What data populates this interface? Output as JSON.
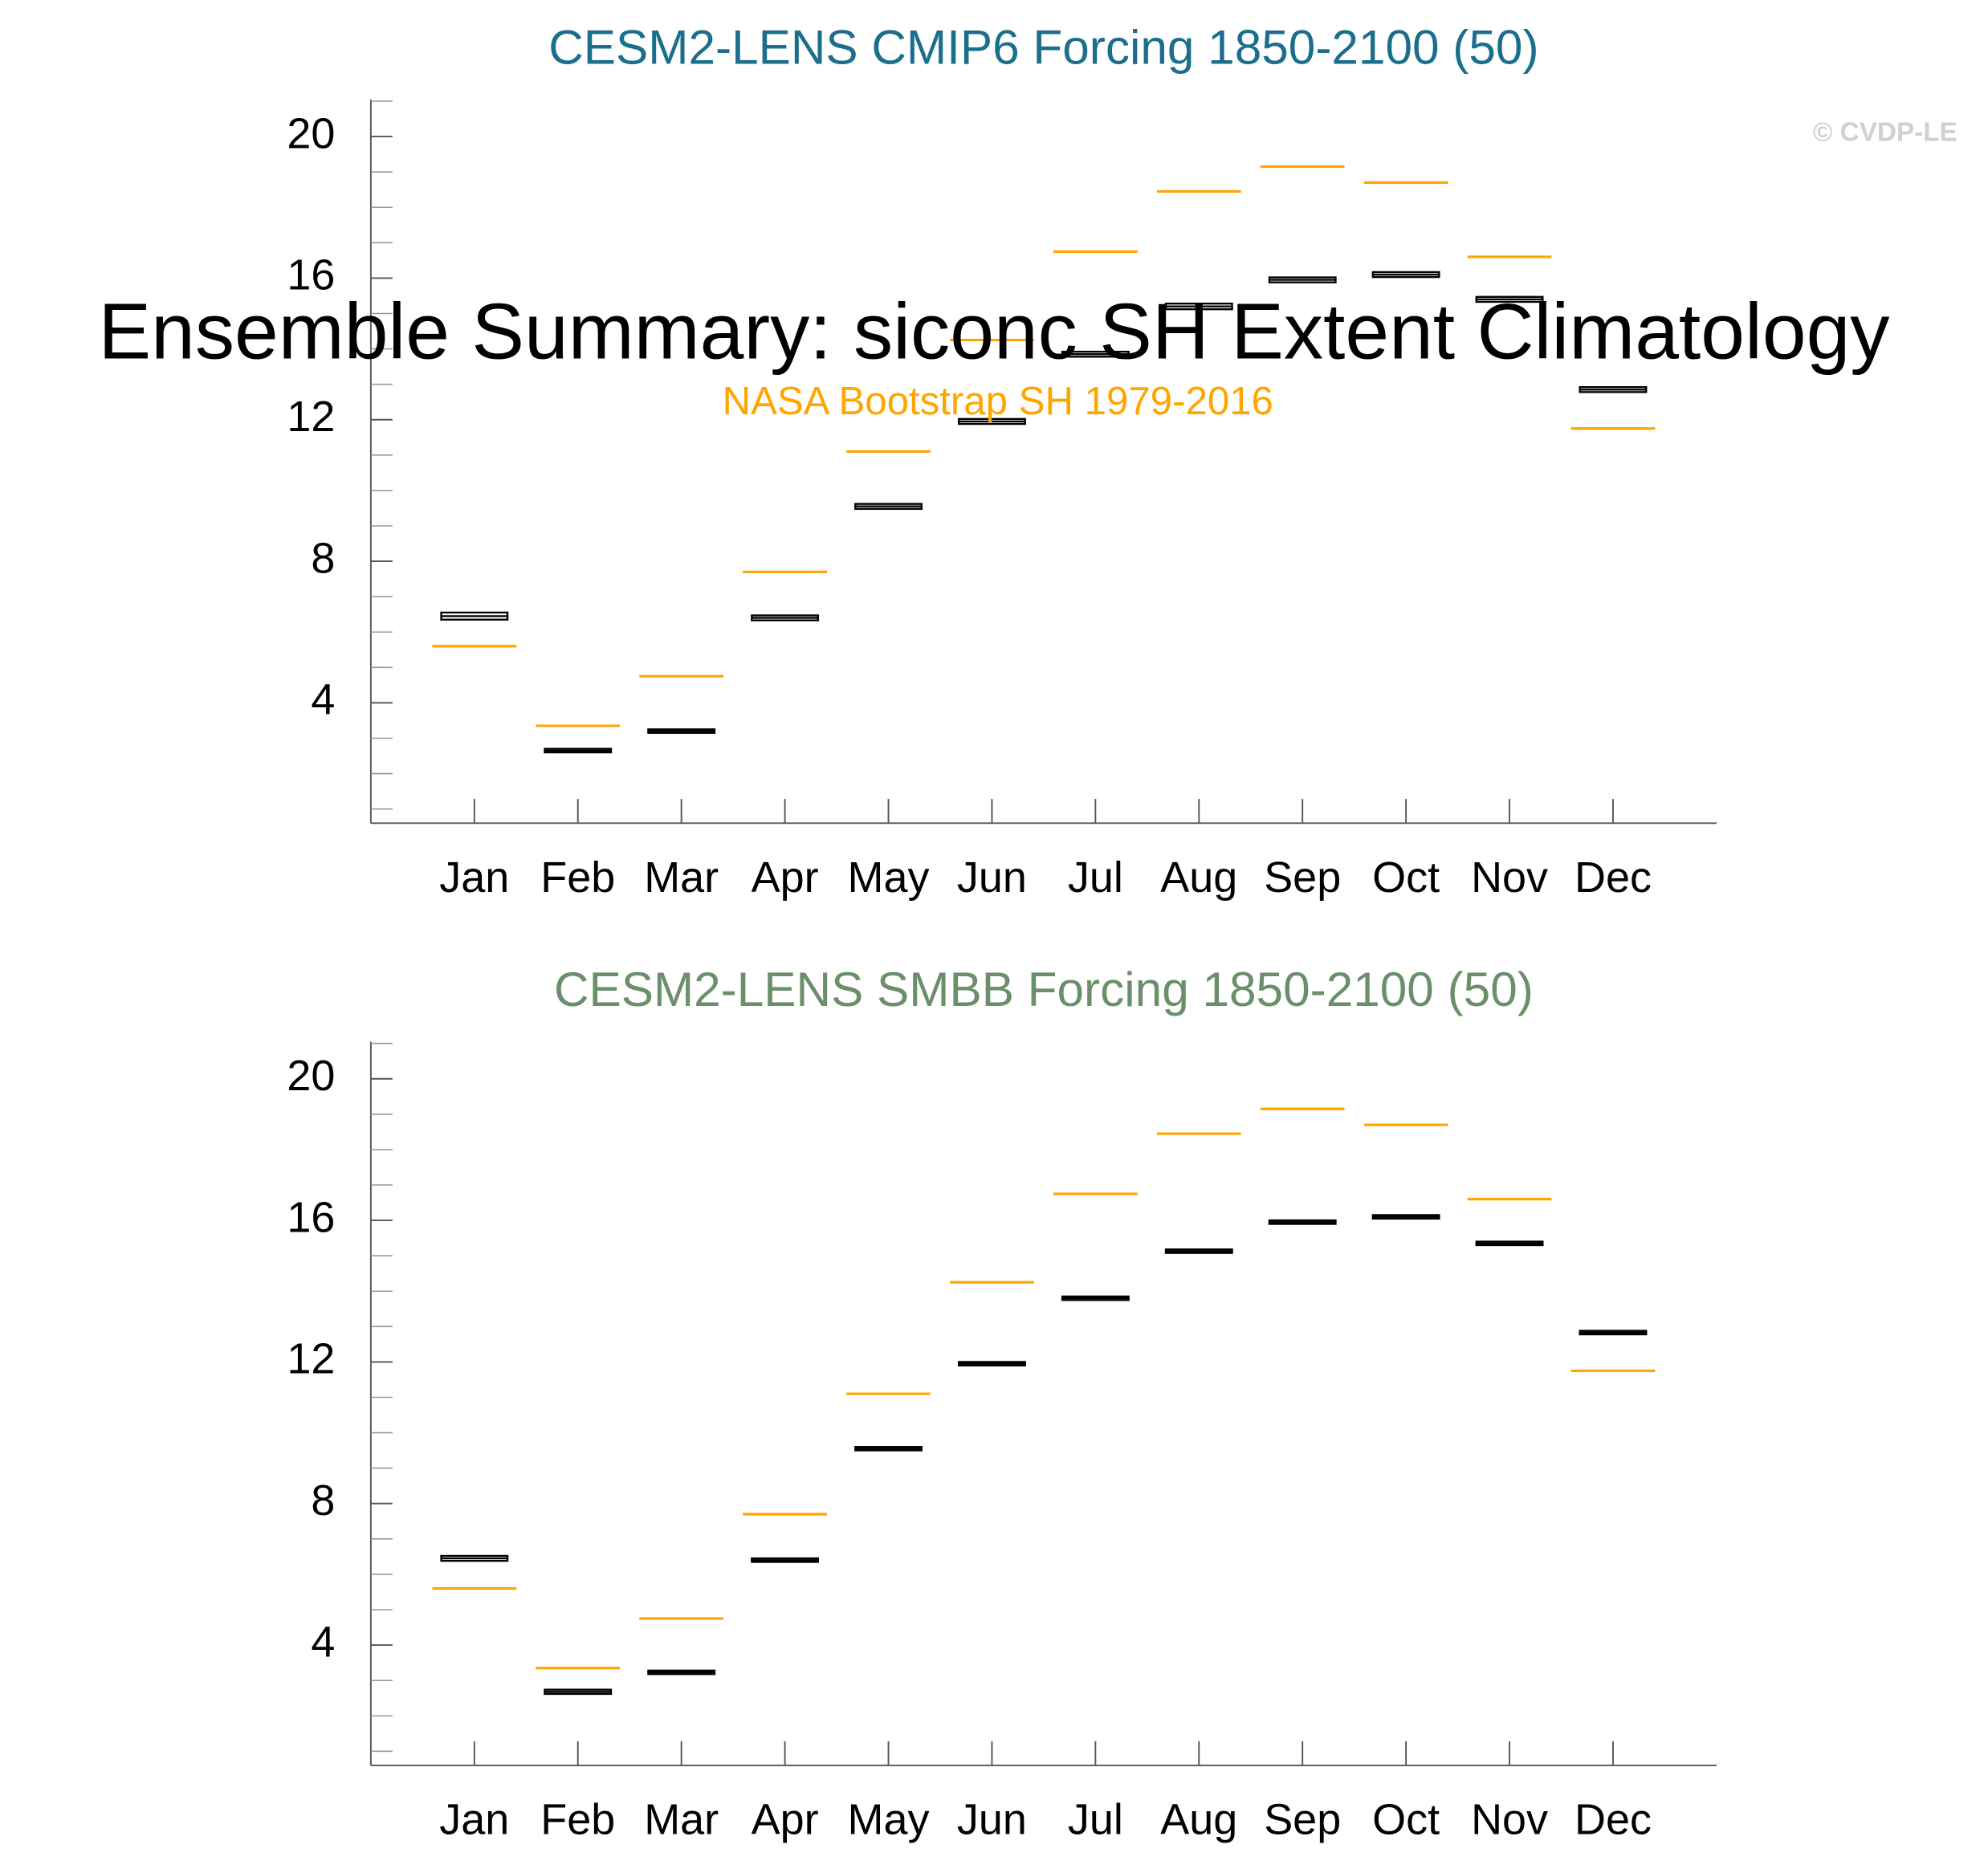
{
  "title": "Ensemble Summary: siconc SH Extent Climatology",
  "subtitle": "NASA Bootstrap SH 1979-2016",
  "watermark": "© CVDP-LE",
  "chart_data": [
    {
      "type": "box",
      "title": "CESM2-LENS CMIP6 Forcing 1850-2100 (50)",
      "title_color": "#1b6e8c",
      "categories": [
        "Jan",
        "Feb",
        "Mar",
        "Apr",
        "May",
        "Jun",
        "Jul",
        "Aug",
        "Sep",
        "Oct",
        "Nov",
        "Dec"
      ],
      "boxes": {
        "color": "#000000",
        "q1": [
          6.35,
          2.6,
          3.15,
          6.33,
          9.48,
          11.88,
          13.78,
          15.12,
          15.88,
          16.03,
          15.33,
          12.78
        ],
        "median": [
          6.45,
          2.65,
          3.2,
          6.4,
          9.55,
          11.95,
          13.85,
          15.2,
          15.95,
          16.1,
          15.4,
          12.85
        ],
        "q3": [
          6.55,
          2.7,
          3.25,
          6.47,
          9.62,
          12.02,
          13.92,
          15.28,
          16.02,
          16.17,
          15.47,
          12.92
        ]
      },
      "observation": {
        "color": "#ffa500",
        "values": [
          5.6,
          3.35,
          4.75,
          7.7,
          11.1,
          14.25,
          16.75,
          18.45,
          19.15,
          18.7,
          16.6,
          11.75
        ]
      },
      "ylim": [
        0.6,
        21.05
      ],
      "yticks": [
        4,
        8,
        12,
        16,
        20
      ],
      "yminor": [
        1,
        2,
        3,
        5,
        6,
        7,
        9,
        10,
        11,
        13,
        14,
        15,
        17,
        18,
        19,
        21
      ]
    },
    {
      "type": "box",
      "title": "CESM2-LENS SMBB Forcing 1850-2100 (50)",
      "title_color": "#6a8f6a",
      "categories": [
        "Jan",
        "Feb",
        "Mar",
        "Apr",
        "May",
        "Jun",
        "Jul",
        "Aug",
        "Sep",
        "Oct",
        "Nov",
        "Dec"
      ],
      "boxes": {
        "color": "#000000",
        "q1": [
          6.38,
          2.62,
          3.18,
          6.35,
          9.5,
          11.9,
          13.75,
          15.08,
          15.9,
          16.05,
          15.3,
          12.78
        ],
        "median": [
          6.45,
          2.68,
          3.23,
          6.4,
          9.55,
          11.95,
          13.8,
          15.13,
          15.95,
          16.1,
          15.35,
          12.83
        ],
        "q3": [
          6.52,
          2.74,
          3.28,
          6.45,
          9.6,
          12.0,
          13.85,
          15.18,
          16.0,
          16.15,
          15.4,
          12.88
        ]
      },
      "observation": {
        "color": "#ffa500",
        "values": [
          5.6,
          3.35,
          4.75,
          7.7,
          11.1,
          14.25,
          16.75,
          18.45,
          19.15,
          18.7,
          16.6,
          11.75
        ]
      },
      "ylim": [
        0.6,
        21.05
      ],
      "yticks": [
        4,
        8,
        12,
        16,
        20
      ],
      "yminor": [
        1,
        2,
        3,
        5,
        6,
        7,
        9,
        10,
        11,
        13,
        14,
        15,
        17,
        18,
        19,
        21
      ]
    }
  ]
}
